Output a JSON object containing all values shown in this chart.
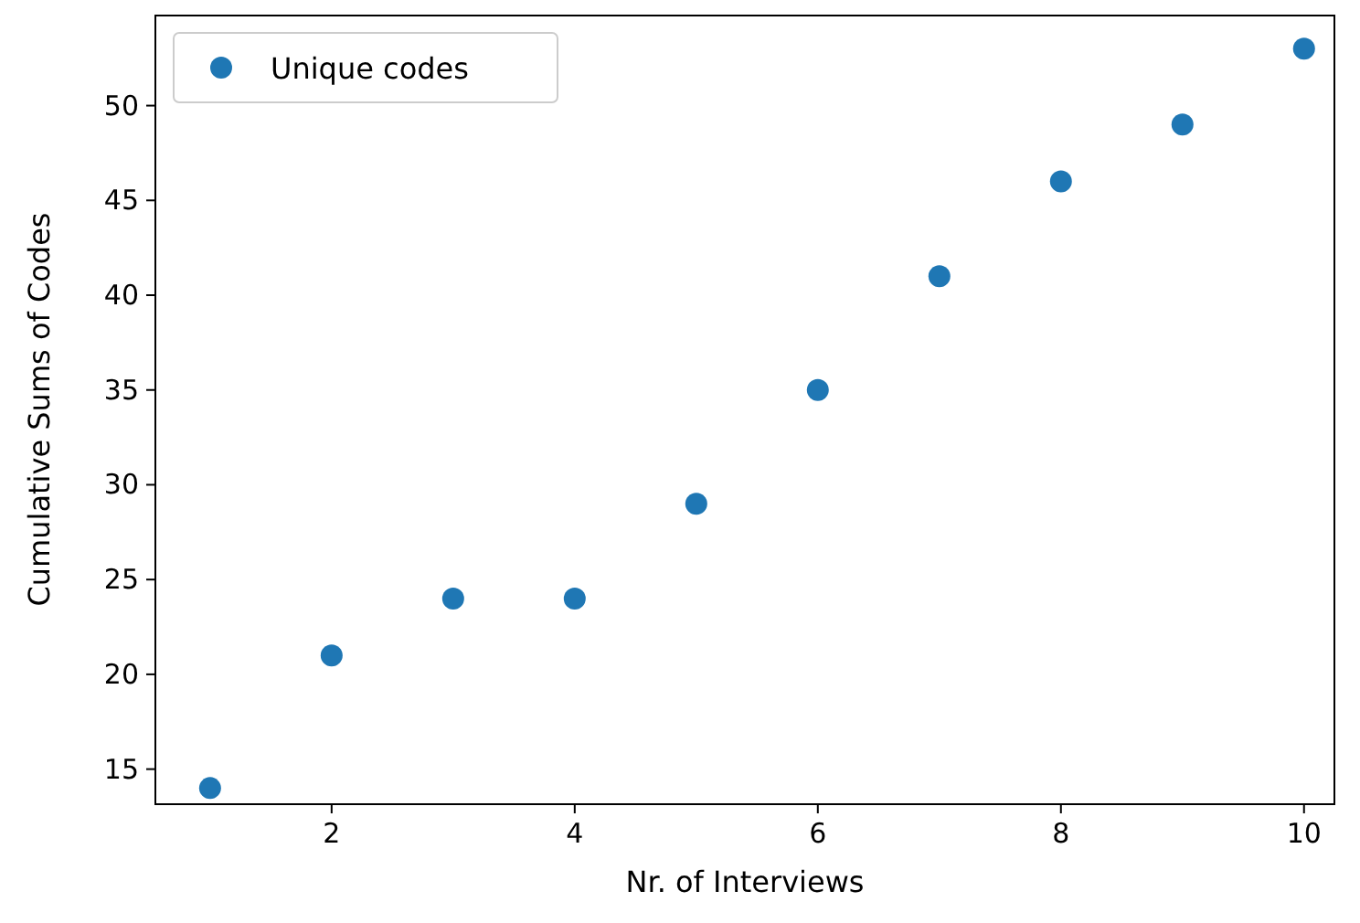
{
  "chart_data": {
    "type": "scatter",
    "xlabel": "Nr. of Interviews",
    "ylabel": "Cumulative Sums of Codes",
    "x": [
      1,
      2,
      3,
      4,
      5,
      6,
      7,
      8,
      9,
      10
    ],
    "series": [
      {
        "name": "Unique codes",
        "color": "#1f77b4",
        "values": [
          14,
          21,
          24,
          24,
          29,
          35,
          41,
          46,
          49,
          53
        ]
      }
    ],
    "xlim": [
      0.55,
      10.25
    ],
    "ylim": [
      13.15,
      54.8
    ],
    "xticks": [
      2,
      4,
      6,
      8,
      10
    ],
    "yticks": [
      15,
      20,
      25,
      30,
      35,
      40,
      45,
      50
    ],
    "legend": "top left",
    "marker": "circle",
    "grid": false
  }
}
